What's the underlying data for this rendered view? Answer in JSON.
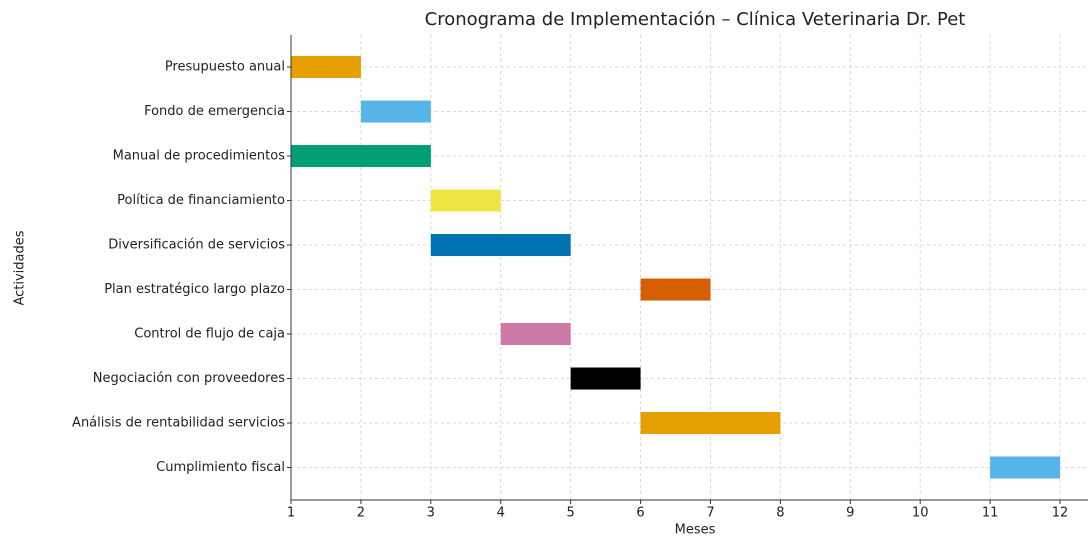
{
  "chart_data": {
    "type": "gantt",
    "title": "Cronograma de Implementación – Clínica Veterinaria Dr. Pet",
    "xlabel": "Meses",
    "ylabel": "Actividades",
    "categories": [
      "Presupuesto anual",
      "Fondo de emergencia",
      "Manual de procedimientos",
      "Política de financiamiento",
      "Diversificación de servicios",
      "Plan estratégico largo plazo",
      "Control de flujo de caja",
      "Negociación con proveedores",
      "Análisis de rentabilidad servicios",
      "Cumplimiento fiscal"
    ],
    "start": [
      1,
      2,
      1,
      3,
      3,
      6,
      4,
      5,
      6,
      11
    ],
    "end": [
      2,
      3,
      3,
      4,
      5,
      7,
      5,
      6,
      8,
      12
    ],
    "colors": [
      "#E69F00",
      "#56B4E9",
      "#009E73",
      "#F0E442",
      "#0072B2",
      "#D55E00",
      "#CC79A7",
      "#000000",
      "#E69F00",
      "#56B4E9"
    ],
    "xlim": [
      1,
      12.4
    ],
    "xticks": [
      1,
      2,
      3,
      4,
      5,
      6,
      7,
      8,
      9,
      10,
      11,
      12
    ],
    "grid": true
  }
}
